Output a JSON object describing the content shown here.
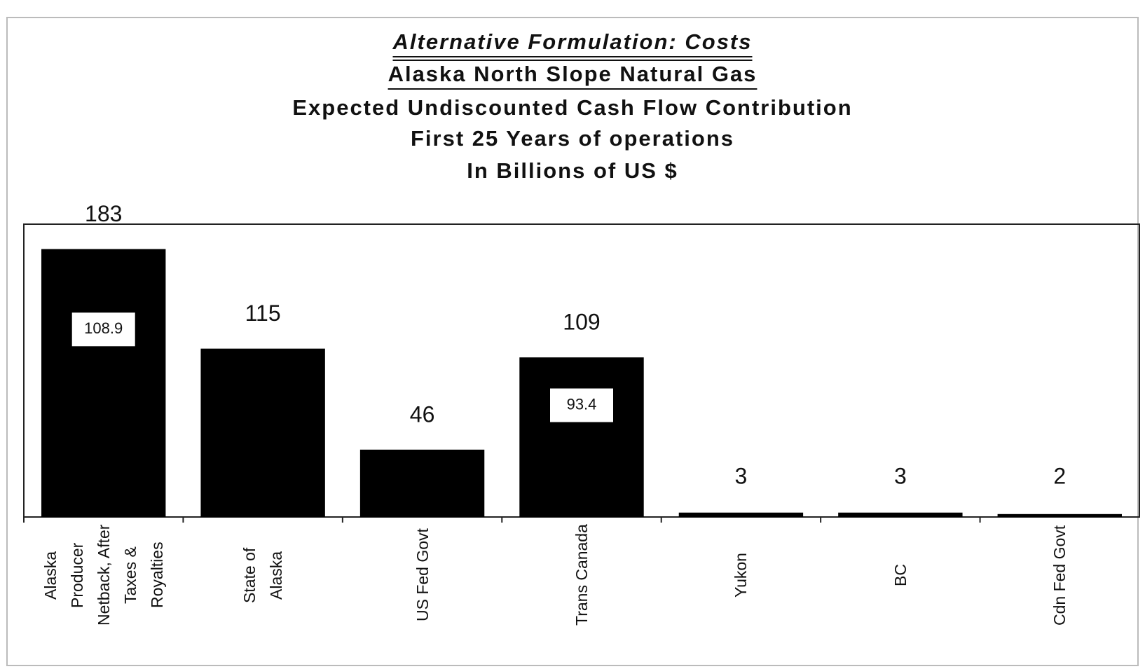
{
  "chart_data": {
    "type": "bar",
    "title_lines": [
      "Alternative Formulation: Costs",
      "Alaska North Slope Natural Gas",
      "Expected Undiscounted Cash Flow Contribution",
      "First 25 Years of operations",
      "In Billions of US $"
    ],
    "categories": [
      "Alaska Producer Netback, After Taxes & Royalties",
      "State of Alaska",
      "US Fed Govt",
      "Trans Canada",
      "Yukon",
      "BC",
      "Cdn Fed Govt"
    ],
    "values": [
      183,
      115,
      46,
      109,
      3,
      3,
      2
    ],
    "inner_values": [
      108.9,
      null,
      null,
      93.4,
      null,
      null,
      null
    ],
    "color": "#000000",
    "ylim": [
      0,
      200
    ]
  }
}
